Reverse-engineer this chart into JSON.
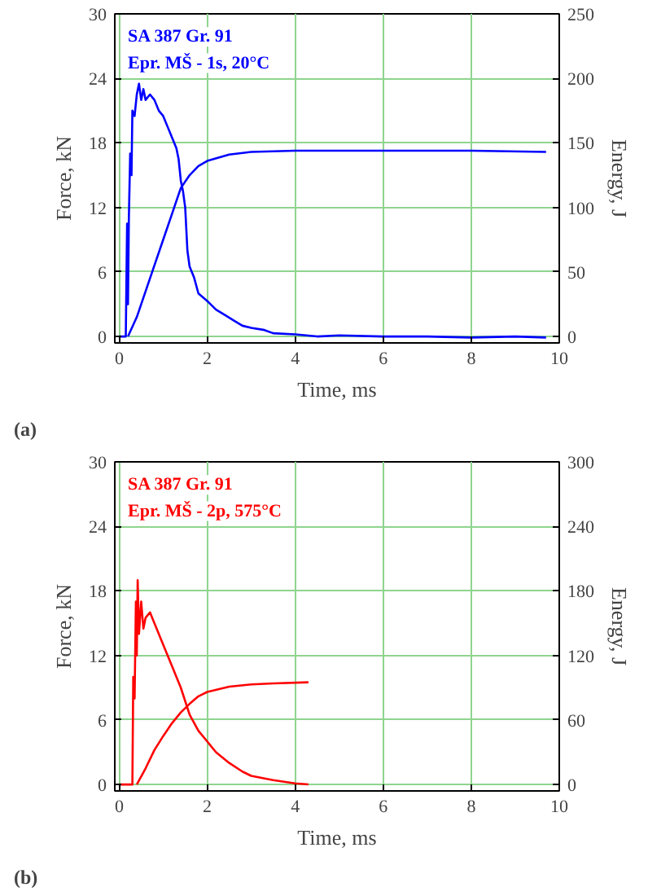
{
  "chart_data": [
    {
      "type": "line",
      "xlabel": "Time, ms",
      "ylabel": "Force, kN",
      "y2label": "Energy, J",
      "annotations": [
        "SA 387 Gr. 91",
        "Epr. MŠ - 1s, 20°C",
        "(a)"
      ],
      "xlim": [
        -0.1,
        10
      ],
      "ylim": [
        -0.6,
        30
      ],
      "y2lim": [
        -5,
        250
      ],
      "xticks": [
        0,
        2,
        4,
        6,
        8,
        10
      ],
      "yticks": [
        0,
        6,
        12,
        18,
        24,
        30
      ],
      "y2ticks": [
        0,
        50,
        100,
        150,
        200,
        250
      ],
      "grid": true,
      "marker": "none",
      "line_style": "solid",
      "series": [
        {
          "color": "#0000ff",
          "x": [
            0,
            0.1,
            0.15,
            0.18,
            0.2,
            0.22,
            0.25,
            0.28,
            0.3,
            0.35,
            0.4,
            0.45,
            0.5,
            0.55,
            0.6,
            0.7,
            0.8,
            0.9,
            1.0,
            1.1,
            1.2,
            1.3,
            1.35,
            1.4,
            1.45,
            1.5,
            1.55,
            1.6,
            1.7,
            1.8,
            2.0,
            2.2,
            2.4,
            2.6,
            2.8,
            3.0,
            3.3,
            3.5,
            4,
            4.5,
            5,
            6,
            7,
            8,
            9,
            9.7
          ],
          "values": [
            0,
            0,
            0,
            10.5,
            3,
            11,
            17,
            15,
            21,
            20.5,
            22.5,
            23.5,
            22,
            23,
            22,
            22.5,
            22,
            21,
            20.5,
            19.5,
            18.5,
            17.5,
            16.5,
            14.5,
            13.5,
            12,
            8,
            6.5,
            5.5,
            4,
            3.3,
            2.5,
            2,
            1.5,
            1,
            0.8,
            0.6,
            0.3,
            0.2,
            0,
            0.1,
            0,
            0,
            -0.1,
            0,
            -0.1
          ]
        },
        {
          "color": "#0000ff",
          "axis": "y2",
          "x": [
            0.2,
            0.4,
            0.6,
            0.8,
            1.0,
            1.2,
            1.4,
            1.6,
            1.8,
            2.0,
            2.5,
            3,
            4,
            6,
            8,
            9.7
          ],
          "values": [
            0,
            15,
            35,
            55,
            75,
            95,
            115,
            125,
            132,
            136,
            141,
            143,
            144,
            144,
            144,
            143
          ]
        }
      ]
    },
    {
      "type": "line",
      "xlabel": "Time, ms",
      "ylabel": "Force, kN",
      "y2label": "Energy, J",
      "annotations": [
        "SA 387 Gr. 91",
        "Epr. MŠ - 2p, 575°C",
        "(b)"
      ],
      "xlim": [
        -0.1,
        10
      ],
      "ylim": [
        -0.6,
        30
      ],
      "y2lim": [
        -6,
        300
      ],
      "xticks": [
        0,
        2,
        4,
        6,
        8,
        10
      ],
      "yticks": [
        0,
        6,
        12,
        18,
        24,
        30
      ],
      "y2ticks": [
        0,
        60,
        120,
        180,
        240,
        300
      ],
      "grid": true,
      "marker": "none",
      "line_style": "solid",
      "series": [
        {
          "color": "#ff0000",
          "x": [
            0,
            0.3,
            0.32,
            0.35,
            0.38,
            0.4,
            0.42,
            0.45,
            0.5,
            0.55,
            0.6,
            0.7,
            0.8,
            0.9,
            1.0,
            1.2,
            1.4,
            1.6,
            1.8,
            2.0,
            2.2,
            2.5,
            2.8,
            3.0,
            3.5,
            4.0,
            4.3
          ],
          "values": [
            0,
            0,
            10,
            8,
            17,
            12,
            19,
            14,
            17,
            14.5,
            15.5,
            16,
            15,
            14,
            13,
            11,
            9,
            6.5,
            5,
            4,
            3,
            2,
            1.2,
            0.8,
            0.4,
            0.1,
            0
          ]
        },
        {
          "color": "#ff0000",
          "axis": "y2",
          "x": [
            0.4,
            0.6,
            0.8,
            1.0,
            1.2,
            1.4,
            1.6,
            1.8,
            2.0,
            2.5,
            3,
            3.5,
            4.3
          ],
          "values": [
            0,
            15,
            32,
            45,
            57,
            67,
            75,
            82,
            86,
            91,
            93,
            94,
            95
          ]
        }
      ]
    }
  ]
}
